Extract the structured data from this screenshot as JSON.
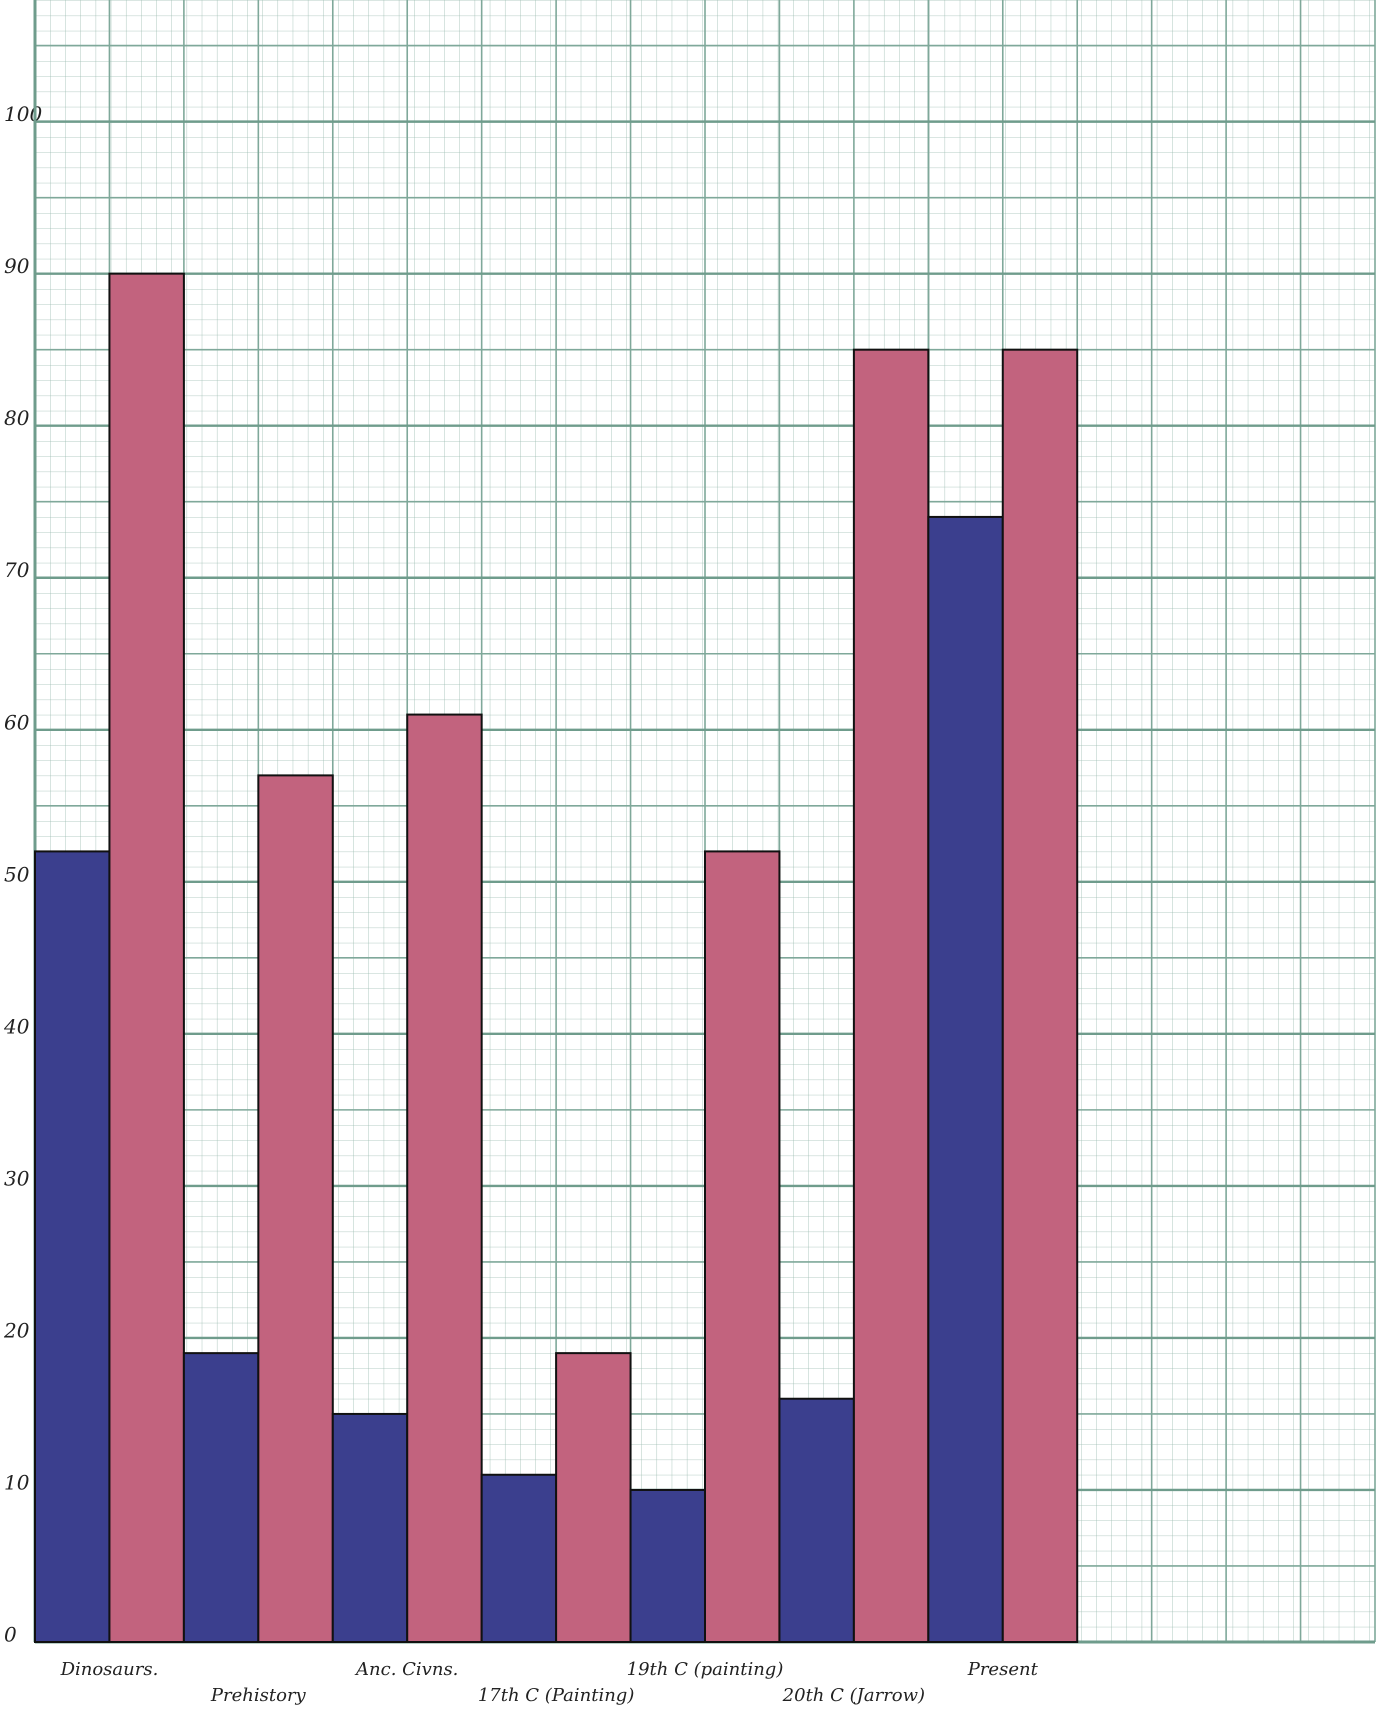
{
  "chart_data": {
    "type": "bar",
    "categories": [
      "Dinosaurs.",
      "Prehistory",
      "Anc. Civns.",
      "17th C (Painting)",
      "19th C (painting)",
      "20th C (Jarrow)",
      "Present"
    ],
    "series": [
      {
        "color": "#3b3f8e",
        "values": [
          52,
          19,
          15,
          11,
          10,
          16,
          74
        ]
      },
      {
        "color": "#c2637e",
        "values": [
          90,
          57,
          61,
          19,
          52,
          85,
          85
        ]
      }
    ],
    "ylim": [
      0,
      108
    ],
    "yticks": [
      0,
      10,
      20,
      30,
      40,
      50,
      60,
      70,
      80,
      90,
      100
    ],
    "grid": true
  }
}
